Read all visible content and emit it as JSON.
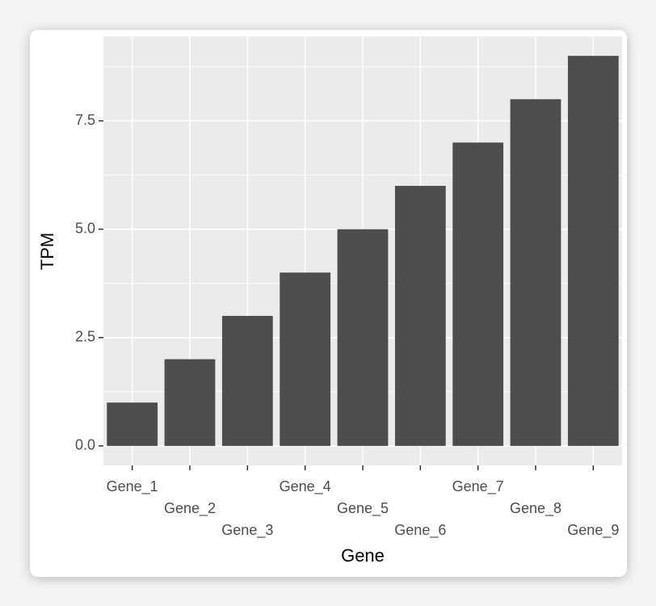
{
  "chart_data": {
    "type": "bar",
    "x_label": "Gene",
    "y_label": "TPM",
    "categories": [
      "Gene_1",
      "Gene_2",
      "Gene_3",
      "Gene_4",
      "Gene_5",
      "Gene_6",
      "Gene_7",
      "Gene_8",
      "Gene_9"
    ],
    "values": [
      1,
      2,
      3,
      4,
      5,
      6,
      7,
      8,
      9
    ],
    "color": "#4d4d4d",
    "ylim": [
      -0.45,
      9.45
    ],
    "yticks": [
      {
        "value": 0,
        "label": "0.0"
      },
      {
        "value": 2.5,
        "label": "2.5"
      },
      {
        "value": 5,
        "label": "5.0"
      },
      {
        "value": 7.5,
        "label": "7.5"
      }
    ],
    "y_minor_ticks": [
      1.25,
      3.75,
      6.25,
      8.75
    ],
    "grid": true
  }
}
